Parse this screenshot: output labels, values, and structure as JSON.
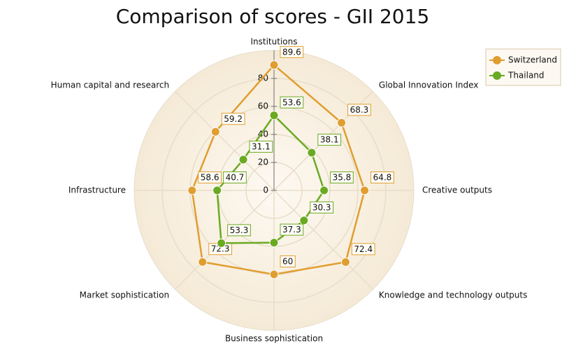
{
  "chart_data": {
    "type": "radar",
    "title": "Comparison of scores - GII 2015",
    "categories": [
      "Institutions",
      "Global Innovation Index",
      "Creative outputs",
      "Knowledge and technology outputs",
      "Business sophistication",
      "Market sophistication",
      "Infrastructure",
      "Human capital and research"
    ],
    "series": [
      {
        "name": "Switzerland",
        "color": "#e09e30",
        "values": [
          89.6,
          68.3,
          64.8,
          72.4,
          60,
          72.3,
          58.6,
          59.2
        ]
      },
      {
        "name": "Thailand",
        "color": "#6aaa22",
        "values": [
          53.6,
          38.1,
          35.8,
          30.3,
          37.3,
          53.3,
          40.7,
          31.1
        ]
      }
    ],
    "ylim": [
      0,
      100
    ],
    "yticks": [
      0,
      20,
      40,
      60,
      80
    ],
    "grid": true,
    "legend": "top-right"
  }
}
